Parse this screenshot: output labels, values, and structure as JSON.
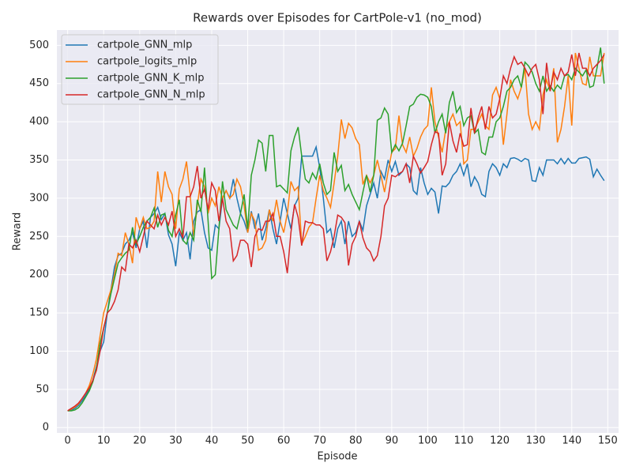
{
  "chart_data": {
    "type": "line",
    "title": "Rewards over Episodes for CartPole-v1 (no_mod)",
    "x_label": "Episode",
    "y_label": "Reward",
    "x": [
      0,
      1,
      2,
      3,
      4,
      5,
      6,
      7,
      8,
      9,
      10,
      11,
      12,
      13,
      14,
      15,
      16,
      17,
      18,
      19,
      20,
      21,
      22,
      23,
      24,
      25,
      26,
      27,
      28,
      29,
      30,
      31,
      32,
      33,
      34,
      35,
      36,
      37,
      38,
      39,
      40,
      41,
      42,
      43,
      44,
      45,
      46,
      47,
      48,
      49,
      50,
      51,
      52,
      53,
      54,
      55,
      56,
      57,
      58,
      59,
      60,
      61,
      62,
      63,
      64,
      65,
      66,
      67,
      68,
      69,
      70,
      71,
      72,
      73,
      74,
      75,
      76,
      77,
      78,
      79,
      80,
      81,
      82,
      83,
      84,
      85,
      86,
      87,
      88,
      89,
      90,
      91,
      92,
      93,
      94,
      95,
      96,
      97,
      98,
      99,
      100,
      101,
      102,
      103,
      104,
      105,
      106,
      107,
      108,
      109,
      110,
      111,
      112,
      113,
      114,
      115,
      116,
      117,
      118,
      119,
      120,
      121,
      122,
      123,
      124,
      125,
      126,
      127,
      128,
      129,
      130,
      131,
      132,
      133,
      134,
      135,
      136,
      137,
      138,
      139,
      140,
      141,
      142,
      143,
      144,
      145,
      146,
      147,
      148,
      149
    ],
    "series": [
      {
        "name": "cartpole_GNN_mlp",
        "color": "#1f77b4",
        "values": [
          22,
          23,
          25,
          29,
          35,
          42,
          50,
          62,
          80,
          100,
          112,
          150,
          180,
          210,
          225,
          228,
          240,
          245,
          255,
          235,
          260,
          270,
          235,
          275,
          280,
          288,
          272,
          280,
          252,
          240,
          211,
          255,
          245,
          255,
          220,
          270,
          282,
          285,
          255,
          235,
          232,
          265,
          260,
          300,
          310,
          300,
          325,
          300,
          280,
          270,
          255,
          283,
          260,
          280,
          245,
          260,
          285,
          260,
          240,
          270,
          300,
          280,
          260,
          290,
          300,
          355,
          355,
          355,
          355,
          367,
          340,
          300,
          255,
          260,
          235,
          260,
          270,
          240,
          270,
          250,
          255,
          270,
          258,
          290,
          305,
          320,
          300,
          335,
          325,
          350,
          335,
          348,
          330,
          335,
          345,
          340,
          310,
          305,
          340,
          320,
          305,
          313,
          308,
          280,
          316,
          315,
          320,
          330,
          335,
          345,
          330,
          345,
          315,
          328,
          320,
          305,
          302,
          335,
          345,
          340,
          330,
          345,
          340,
          352,
          353,
          351,
          348,
          352,
          350,
          323,
          322,
          340,
          330,
          350,
          350,
          350,
          345,
          352,
          345,
          352,
          346,
          346,
          352,
          353,
          354,
          351,
          328,
          338,
          330,
          323
        ]
      },
      {
        "name": "cartpole_logits_mlp",
        "color": "#ff7f0e",
        "values": [
          22,
          24,
          27,
          31,
          38,
          45,
          55,
          70,
          90,
          120,
          150,
          165,
          180,
          200,
          228,
          225,
          255,
          240,
          215,
          275,
          260,
          275,
          260,
          262,
          270,
          335,
          295,
          335,
          315,
          305,
          260,
          312,
          325,
          348,
          305,
          250,
          290,
          325,
          315,
          280,
          300,
          290,
          315,
          300,
          310,
          300,
          305,
          325,
          315,
          290,
          255,
          280,
          270,
          232,
          235,
          245,
          285,
          270,
          298,
          270,
          255,
          280,
          322,
          310,
          315,
          240,
          250,
          262,
          268,
          300,
          330,
          310,
          300,
          288,
          320,
          355,
          403,
          378,
          398,
          392,
          378,
          370,
          318,
          330,
          320,
          330,
          350,
          330,
          308,
          335,
          360,
          365,
          408,
          370,
          360,
          380,
          355,
          365,
          380,
          390,
          395,
          445,
          400,
          380,
          360,
          390,
          400,
          410,
          395,
          400,
          345,
          350,
          390,
          390,
          400,
          410,
          395,
          390,
          435,
          445,
          430,
          370,
          410,
          455,
          440,
          430,
          445,
          470,
          410,
          390,
          400,
          390,
          435,
          455,
          440,
          470,
          373,
          390,
          420,
          460,
          395,
          490,
          470,
          450,
          448,
          485,
          460,
          460,
          460,
          490
        ]
      },
      {
        "name": "cartpole_GNN_K_mlp",
        "color": "#2ca02c",
        "values": [
          22,
          22,
          23,
          26,
          32,
          40,
          48,
          60,
          78,
          110,
          130,
          150,
          175,
          195,
          215,
          222,
          228,
          232,
          262,
          240,
          250,
          262,
          270,
          275,
          287,
          262,
          278,
          280,
          258,
          250,
          278,
          298,
          245,
          240,
          255,
          245,
          298,
          282,
          340,
          270,
          195,
          200,
          260,
          322,
          285,
          275,
          265,
          260,
          280,
          305,
          260,
          330,
          350,
          376,
          372,
          335,
          382,
          382,
          315,
          317,
          312,
          307,
          362,
          380,
          393,
          355,
          325,
          320,
          333,
          325,
          345,
          320,
          305,
          310,
          360,
          335,
          343,
          310,
          318,
          305,
          295,
          285,
          308,
          330,
          308,
          330,
          402,
          405,
          418,
          410,
          360,
          370,
          362,
          372,
          395,
          420,
          423,
          432,
          436,
          435,
          432,
          420,
          385,
          400,
          410,
          385,
          425,
          440,
          412,
          420,
          395,
          405,
          408,
          385,
          390,
          360,
          357,
          380,
          380,
          400,
          405,
          420,
          440,
          445,
          455,
          460,
          445,
          478,
          473,
          465,
          450,
          440,
          460,
          440,
          447,
          440,
          448,
          443,
          460,
          462,
          455,
          470,
          465,
          460,
          468,
          445,
          447,
          470,
          497,
          450
        ]
      },
      {
        "name": "cartpole_GNN_N_mlp",
        "color": "#d62728",
        "values": [
          22,
          25,
          28,
          32,
          38,
          45,
          52,
          62,
          75,
          100,
          130,
          150,
          155,
          165,
          180,
          210,
          205,
          240,
          235,
          245,
          230,
          250,
          270,
          265,
          260,
          278,
          265,
          275,
          265,
          283,
          250,
          260,
          248,
          302,
          302,
          315,
          342,
          300,
          312,
          285,
          320,
          310,
          270,
          300,
          270,
          260,
          218,
          225,
          245,
          245,
          240,
          210,
          250,
          260,
          258,
          270,
          270,
          280,
          250,
          250,
          230,
          202,
          255,
          292,
          275,
          238,
          270,
          268,
          268,
          265,
          265,
          260,
          218,
          230,
          250,
          278,
          275,
          268,
          212,
          240,
          250,
          270,
          248,
          235,
          230,
          218,
          225,
          250,
          290,
          300,
          330,
          328,
          332,
          335,
          345,
          320,
          355,
          345,
          333,
          340,
          348,
          370,
          387,
          385,
          330,
          345,
          400,
          375,
          360,
          385,
          368,
          370,
          418,
          385,
          405,
          420,
          390,
          420,
          405,
          410,
          430,
          460,
          450,
          470,
          485,
          475,
          478,
          470,
          460,
          470,
          475,
          455,
          410,
          477,
          440,
          465,
          455,
          470,
          460,
          465,
          488,
          460,
          490,
          470,
          470,
          460,
          470,
          475,
          480,
          488
        ]
      }
    ],
    "xlim": [
      -3,
      153
    ],
    "ylim": [
      -7,
      520
    ],
    "xticks": [
      0,
      10,
      20,
      30,
      40,
      50,
      60,
      70,
      80,
      90,
      100,
      110,
      120,
      130,
      140,
      150
    ],
    "yticks": [
      0,
      50,
      100,
      150,
      200,
      250,
      300,
      350,
      400,
      450,
      500
    ],
    "grid": true,
    "legend": "upper left"
  }
}
